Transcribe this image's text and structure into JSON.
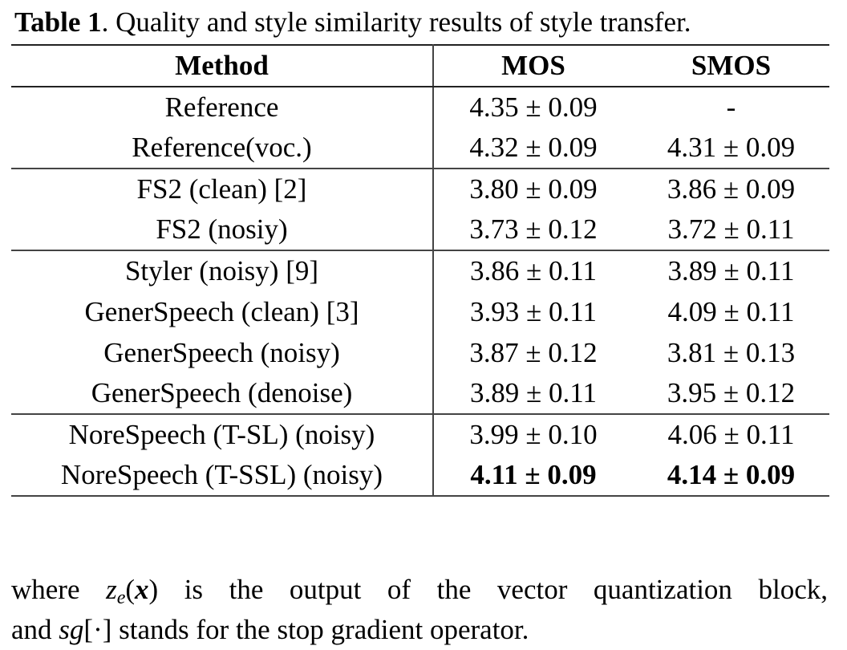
{
  "caption": {
    "label": "Table 1",
    "text": ". Quality and style similarity results of style transfer."
  },
  "table": {
    "header": [
      "Method",
      "MOS",
      "SMOS"
    ],
    "groups": [
      [
        [
          "Reference",
          "4.35 ± 0.09",
          "-"
        ],
        [
          "Reference(voc.)",
          "4.32 ± 0.09",
          "4.31 ± 0.09"
        ]
      ],
      [
        [
          "FS2 (clean) [2]",
          "3.80 ± 0.09",
          "3.86 ± 0.09"
        ],
        [
          "FS2 (nosiy)",
          "3.73 ± 0.12",
          "3.72 ± 0.11"
        ]
      ],
      [
        [
          "Styler (noisy) [9]",
          "3.86 ± 0.11",
          "3.89 ± 0.11"
        ],
        [
          "GenerSpeech (clean) [3]",
          "3.93 ± 0.11",
          "4.09 ± 0.11"
        ],
        [
          "GenerSpeech (noisy)",
          "3.87 ± 0.12",
          "3.81 ± 0.13"
        ],
        [
          "GenerSpeech (denoise)",
          "3.89 ± 0.11",
          "3.95 ± 0.12"
        ]
      ],
      [
        [
          "NoreSpeech (T-SL) (noisy)",
          "3.99 ± 0.10",
          "4.06 ± 0.11"
        ],
        [
          "NoreSpeech (T-SSL) (noisy)",
          "4.11 ± 0.09",
          "4.14 ± 0.09"
        ]
      ]
    ]
  },
  "paragraph": [
    "where ",
    "z",
    "e",
    "(",
    "x",
    ")",
    " is the output of the vector quantization block,",
    "and ",
    "sg",
    "[·]",
    " stands for the stop gradient operator."
  ]
}
